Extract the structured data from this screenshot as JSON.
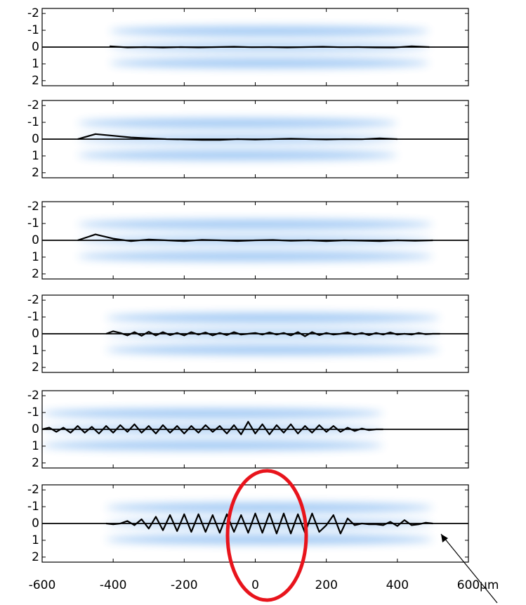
{
  "chart_data": [
    {
      "type": "line",
      "xlim": [
        -600,
        600
      ],
      "ylim": [
        2.3,
        -2.3
      ],
      "xticks": [
        -600,
        -400,
        -200,
        0,
        200,
        400,
        600
      ],
      "yticks": [
        -2,
        -1,
        0,
        1,
        2
      ],
      "series": [
        {
          "color": "#000000",
          "x": [
            -410,
            -360,
            -310,
            -260,
            -210,
            -160,
            -110,
            -60,
            -10,
            40,
            90,
            140,
            190,
            240,
            290,
            340,
            390,
            440,
            490
          ],
          "values": [
            -0.05,
            0.02,
            0,
            0.03,
            0,
            0.02,
            0,
            -0.02,
            0.01,
            0,
            0.02,
            0,
            -0.02,
            0.01,
            0,
            0.02,
            0.03,
            -0.05,
            0
          ]
        }
      ]
    },
    {
      "type": "line",
      "xlim": [
        -600,
        600
      ],
      "ylim": [
        2.3,
        -2.3
      ],
      "xticks": [
        -600,
        -400,
        -200,
        0,
        200,
        400,
        600
      ],
      "yticks": [
        -2,
        -1,
        0,
        1,
        2
      ],
      "series": [
        {
          "color": "#000000",
          "x": [
            -500,
            -450,
            -400,
            -350,
            -300,
            -250,
            -200,
            -150,
            -100,
            -50,
            0,
            50,
            100,
            150,
            200,
            250,
            300,
            350,
            400
          ],
          "values": [
            0,
            -0.3,
            -0.2,
            -0.1,
            -0.05,
            0,
            0.02,
            0.05,
            0.05,
            0,
            0.03,
            0,
            -0.03,
            0,
            0.02,
            0,
            0.01,
            -0.05,
            0
          ]
        }
      ]
    },
    {
      "type": "line",
      "xlim": [
        -600,
        600
      ],
      "ylim": [
        2.3,
        -2.3
      ],
      "xticks": [
        -600,
        -400,
        -200,
        0,
        200,
        400,
        600
      ],
      "yticks": [
        -2,
        -1,
        0,
        1,
        2
      ],
      "series": [
        {
          "color": "#000000",
          "x": [
            -500,
            -450,
            -400,
            -350,
            -300,
            -250,
            -200,
            -150,
            -100,
            -50,
            0,
            50,
            100,
            150,
            200,
            250,
            300,
            350,
            400,
            450,
            500
          ],
          "values": [
            0,
            -0.35,
            -0.1,
            0.05,
            -0.05,
            0,
            0.05,
            -0.03,
            0,
            0.04,
            0,
            -0.02,
            0.03,
            0,
            0.05,
            0,
            0.02,
            0.05,
            0,
            0.03,
            0
          ]
        }
      ]
    },
    {
      "type": "line",
      "xlim": [
        -600,
        600
      ],
      "ylim": [
        2.3,
        -2.3
      ],
      "xticks": [
        -600,
        -400,
        -200,
        0,
        200,
        400,
        600
      ],
      "yticks": [
        -2,
        -1,
        0,
        1,
        2
      ],
      "series": [
        {
          "color": "#000000",
          "x": [
            -420,
            -400,
            -380,
            -360,
            -340,
            -320,
            -300,
            -280,
            -260,
            -240,
            -220,
            -200,
            -180,
            -160,
            -140,
            -120,
            -100,
            -80,
            -60,
            -40,
            -20,
            0,
            20,
            40,
            60,
            80,
            100,
            120,
            140,
            160,
            180,
            200,
            220,
            240,
            260,
            280,
            300,
            320,
            340,
            360,
            380,
            400,
            420,
            440,
            460,
            480,
            500,
            520
          ],
          "values": [
            0,
            -0.15,
            -0.05,
            0.1,
            -0.1,
            0.12,
            -0.12,
            0.1,
            -0.1,
            0.08,
            -0.05,
            0.1,
            -0.1,
            0.05,
            -0.08,
            0.1,
            -0.05,
            0.08,
            -0.1,
            0.05,
            0,
            -0.05,
            0.05,
            -0.08,
            0.05,
            -0.05,
            0.1,
            -0.1,
            0.15,
            -0.1,
            0.08,
            -0.05,
            0.05,
            0,
            -0.08,
            0.05,
            -0.05,
            0.08,
            -0.05,
            0.05,
            -0.08,
            0.05,
            0,
            0.05,
            -0.05,
            0.03,
            0,
            0
          ]
        }
      ]
    },
    {
      "type": "line",
      "xlim": [
        -600,
        600
      ],
      "ylim": [
        2.3,
        -2.3
      ],
      "xticks": [
        -600,
        -400,
        -200,
        0,
        200,
        400,
        600
      ],
      "yticks": [
        -2,
        -1,
        0,
        1,
        2
      ],
      "series": [
        {
          "color": "#000000",
          "x": [
            -600,
            -580,
            -560,
            -540,
            -520,
            -500,
            -480,
            -460,
            -440,
            -420,
            -400,
            -380,
            -360,
            -340,
            -320,
            -300,
            -280,
            -260,
            -240,
            -220,
            -200,
            -180,
            -160,
            -140,
            -120,
            -100,
            -80,
            -60,
            -40,
            -20,
            0,
            20,
            40,
            60,
            80,
            100,
            120,
            140,
            160,
            180,
            200,
            220,
            240,
            260,
            280,
            300,
            320,
            340,
            360
          ],
          "values": [
            0,
            -0.1,
            0.15,
            -0.1,
            0.2,
            -0.2,
            0.2,
            -0.15,
            0.25,
            -0.2,
            0.2,
            -0.25,
            0.15,
            -0.3,
            0.2,
            -0.2,
            0.25,
            -0.25,
            0.2,
            -0.2,
            0.25,
            -0.2,
            0.2,
            -0.25,
            0.15,
            -0.2,
            0.25,
            -0.25,
            0.3,
            -0.45,
            0.25,
            -0.3,
            0.3,
            -0.25,
            0.2,
            -0.3,
            0.25,
            -0.2,
            0.2,
            -0.25,
            0.15,
            -0.2,
            0.15,
            -0.1,
            0.1,
            -0.05,
            0.05,
            0,
            0
          ]
        }
      ]
    },
    {
      "type": "line",
      "xlim": [
        -600,
        600
      ],
      "ylim": [
        2.3,
        -2.3
      ],
      "xticks": [
        -600,
        -400,
        -200,
        0,
        200,
        400,
        600
      ],
      "yticks": [
        -2,
        -1,
        0,
        1,
        2
      ],
      "xlabel": "μm",
      "series": [
        {
          "color": "#000000",
          "x": [
            -420,
            -400,
            -380,
            -360,
            -340,
            -320,
            -300,
            -280,
            -260,
            -240,
            -220,
            -200,
            -180,
            -160,
            -140,
            -120,
            -100,
            -80,
            -60,
            -40,
            -20,
            0,
            20,
            40,
            60,
            80,
            100,
            120,
            140,
            160,
            180,
            200,
            220,
            240,
            260,
            280,
            300,
            320,
            340,
            360,
            380,
            400,
            420,
            440,
            460,
            480,
            500
          ],
          "values": [
            0,
            0.05,
            0,
            -0.15,
            0.1,
            -0.25,
            0.3,
            -0.4,
            0.4,
            -0.5,
            0.45,
            -0.55,
            0.5,
            -0.55,
            0.5,
            -0.5,
            0.55,
            -0.55,
            0.5,
            -0.5,
            0.55,
            -0.6,
            0.55,
            -0.6,
            0.6,
            -0.6,
            0.6,
            -0.55,
            0.55,
            -0.6,
            0.5,
            0.1,
            -0.5,
            0.6,
            -0.3,
            0.1,
            0,
            0.05,
            0.05,
            0.1,
            -0.1,
            0.15,
            -0.2,
            0.1,
            0.05,
            -0.05,
            0
          ]
        }
      ]
    }
  ]
}
